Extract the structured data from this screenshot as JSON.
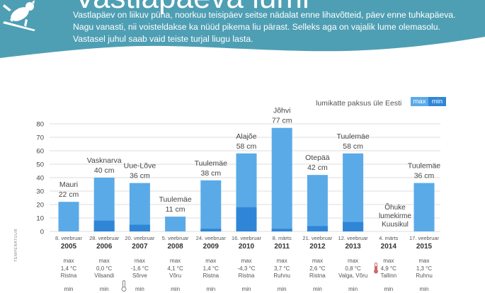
{
  "header": {
    "title": "Vastlapäeva lumi",
    "intro_lines": [
      "Vastlapäev on liikuv püha, noorkuu teisipäev seitse nädalat enne lihavõtteid, päev enne tuhkapäeva.",
      "Nagu vanasti, nii voisteldakse ka nüüd pikema liu pärast. Selleks aga on vajalik lume olemasolu.",
      "Vastasel juhul saab vaid teiste turjal liugu lasta."
    ],
    "bg_color": "#4f9fb4",
    "icon": "sledding-dog-icon"
  },
  "legend": {
    "label": "lumikatte paksus üle Eesti",
    "max_label": "max",
    "min_label": "min"
  },
  "colors": {
    "max": "#5aaae8",
    "min": "#2f86d6",
    "grid": "#dddddd",
    "text": "#333333"
  },
  "side_label": "TEMPERATUUR",
  "note_2014": [
    "Õhuke",
    "lumekirme",
    "Kuusikul"
  ],
  "chart_data": {
    "type": "bar",
    "title": "",
    "legend": "top-right",
    "grid": true,
    "ylim": [
      0,
      80
    ],
    "yticks": [
      0,
      10,
      20,
      30,
      40,
      50,
      60,
      70,
      80
    ],
    "categories": [
      "2005",
      "2006",
      "2007",
      "2008",
      "2009",
      "2010",
      "2011",
      "2012",
      "2013",
      "2014",
      "2015"
    ],
    "dates": [
      "8. veebruar",
      "28. veebruar",
      "20. veebruar",
      "5. veebruar",
      "24. veebruar",
      "16. veebruar",
      "8. märts",
      "21. veebruar",
      "12. veebruar",
      "4. märts",
      "17. veebruar"
    ],
    "series": [
      {
        "name": "max",
        "values": [
          22,
          40,
          36,
          11,
          38,
          58,
          77,
          42,
          58,
          0,
          36
        ]
      },
      {
        "name": "min",
        "values": [
          0,
          8,
          5,
          0,
          2,
          18,
          2,
          4,
          7,
          0,
          0
        ]
      }
    ],
    "bar_labels": [
      {
        "place": "Mauri",
        "value": "22 cm"
      },
      {
        "place": "Vasknarva",
        "value": "40 cm"
      },
      {
        "place": "Uue-Lõve",
        "value": "36 cm"
      },
      {
        "place": "Tuulemäe",
        "value": "11 cm"
      },
      {
        "place": "Tuulemäe",
        "value": "38 cm"
      },
      {
        "place": "Alajõe",
        "value": "58 cm"
      },
      {
        "place": "Jõhvi",
        "value": "77 cm"
      },
      {
        "place": "Otepää",
        "value": "42 cm"
      },
      {
        "place": "Tuulemäe",
        "value": "58 cm"
      },
      null,
      {
        "place": "Tuulemäe",
        "value": "36 cm"
      }
    ]
  },
  "temperatures": [
    {
      "label": "max",
      "value": "1,4 °C",
      "place": "Ristna"
    },
    {
      "label": "max",
      "value": "0,0 °C",
      "place": "Vilsandi"
    },
    {
      "label": "max",
      "value": "-1,6 °C",
      "place": "Sõrve"
    },
    {
      "label": "max",
      "value": "4,1 °C",
      "place": "Võru"
    },
    {
      "label": "max",
      "value": "1,4 °C",
      "place": "Ristna"
    },
    {
      "label": "max",
      "value": "-4,3 °C",
      "place": "Ristna"
    },
    {
      "label": "max",
      "value": "3,7 °C",
      "place": "Ruhnu"
    },
    {
      "label": "max",
      "value": "2,6 °C",
      "place": "Ristna"
    },
    {
      "label": "max",
      "value": "0,8 °C",
      "place": "Valga, Võru"
    },
    {
      "label": "max",
      "value": "4,9 °C",
      "place": "Tallinn"
    },
    {
      "label": "max",
      "value": "1,3 °C",
      "place": "Ruhnu"
    }
  ],
  "min_row_label": "min"
}
